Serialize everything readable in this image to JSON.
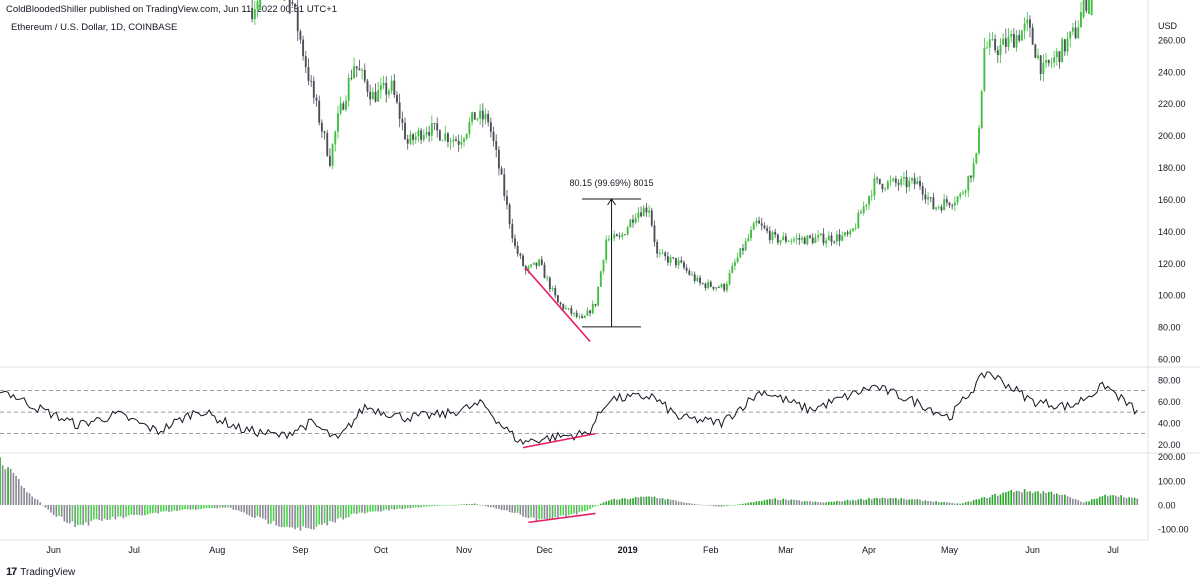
{
  "header": {
    "published_by": "ColdBloodedShiller published on TradingView.com, Jun 11, 2022 00:51 UTC+1"
  },
  "symbol_line": "Ethereum / U.S. Dollar, 1D, COINBASE",
  "footer": {
    "brand": "TradingView",
    "logo_glyph": "17"
  },
  "colors": {
    "up": "#3fbf3f",
    "down": "#4d4d5a",
    "annotation": "#e91e63",
    "rsi_line": "#131722",
    "hist_up": "#4cd24c",
    "hist_down": "#8a8a96",
    "hist_strong": "#26a626"
  },
  "chart_data": [
    {
      "type": "candlestick",
      "title": "Ethereum / U.S. Dollar, 1D, COINBASE",
      "y_unit": "USD",
      "ylim": [
        55,
        285
      ],
      "y_ticks": [
        "260.00",
        "240.00",
        "220.00",
        "200.00",
        "180.00",
        "160.00",
        "140.00",
        "120.00",
        "100.00",
        "80.00",
        "60.00"
      ],
      "x_ticks": [
        "Jun",
        "Jul",
        "Aug",
        "Sep",
        "Oct",
        "Nov",
        "Dec",
        "2019",
        "Feb",
        "Mar",
        "Apr",
        "May",
        "Jun",
        "Jul"
      ],
      "x_range": [
        "2018-05-12",
        "2019-07-14"
      ],
      "close_path": [
        [
          "2018-08-14",
          280
        ],
        [
          "2018-08-20",
          300
        ],
        [
          "2018-08-28",
          290
        ],
        [
          "2018-09-05",
          230
        ],
        [
          "2018-09-12",
          185
        ],
        [
          "2018-09-15",
          210
        ],
        [
          "2018-09-21",
          245
        ],
        [
          "2018-09-28",
          225
        ],
        [
          "2018-10-05",
          230
        ],
        [
          "2018-10-11",
          195
        ],
        [
          "2018-10-18",
          205
        ],
        [
          "2018-10-30",
          197
        ],
        [
          "2018-11-05",
          212
        ],
        [
          "2018-11-10",
          210
        ],
        [
          "2018-11-14",
          180
        ],
        [
          "2018-11-20",
          130
        ],
        [
          "2018-11-24",
          115
        ],
        [
          "2018-11-29",
          120
        ],
        [
          "2018-12-06",
          95
        ],
        [
          "2018-12-15",
          84
        ],
        [
          "2018-12-20",
          95
        ],
        [
          "2018-12-24",
          135
        ],
        [
          "2018-12-29",
          135
        ],
        [
          "2019-01-04",
          152
        ],
        [
          "2019-01-09",
          155
        ],
        [
          "2019-01-12",
          125
        ],
        [
          "2019-01-20",
          120
        ],
        [
          "2019-01-28",
          107
        ],
        [
          "2019-02-06",
          105
        ],
        [
          "2019-02-10",
          120
        ],
        [
          "2019-02-18",
          145
        ],
        [
          "2019-02-25",
          135
        ],
        [
          "2019-03-10",
          135
        ],
        [
          "2019-03-25",
          137
        ],
        [
          "2019-04-03",
          170
        ],
        [
          "2019-04-12",
          170
        ],
        [
          "2019-04-20",
          170
        ],
        [
          "2019-04-25",
          155
        ],
        [
          "2019-05-05",
          162
        ],
        [
          "2019-05-11",
          185
        ],
        [
          "2019-05-14",
          255
        ],
        [
          "2019-05-20",
          255
        ],
        [
          "2019-05-30",
          268
        ],
        [
          "2019-06-05",
          240
        ],
        [
          "2019-06-10",
          250
        ],
        [
          "2019-06-17",
          265
        ],
        [
          "2019-06-24",
          305
        ]
      ],
      "annotations": {
        "measure": {
          "label": "80.15 (99.69%) 8015",
          "from_date": "2018-12-15",
          "to_date": "2019-01-06",
          "low": 80.15,
          "high": 160.3
        },
        "trendline": {
          "from": [
            "2018-11-24",
            117
          ],
          "to": [
            "2018-12-18",
            71
          ]
        }
      }
    },
    {
      "type": "line",
      "name": "RSI",
      "ylim": [
        12,
        92
      ],
      "y_ticks": [
        "80.00",
        "60.00",
        "40.00",
        "20.00"
      ],
      "levels": [
        70,
        50,
        30
      ],
      "path": [
        [
          "2018-05-12",
          72
        ],
        [
          "2018-05-25",
          55
        ],
        [
          "2018-06-10",
          38
        ],
        [
          "2018-06-25",
          48
        ],
        [
          "2018-07-10",
          32
        ],
        [
          "2018-07-25",
          52
        ],
        [
          "2018-08-10",
          34
        ],
        [
          "2018-08-25",
          28
        ],
        [
          "2018-09-05",
          40
        ],
        [
          "2018-09-15",
          24
        ],
        [
          "2018-09-25",
          55
        ],
        [
          "2018-10-10",
          45
        ],
        [
          "2018-10-25",
          48
        ],
        [
          "2018-11-08",
          58
        ],
        [
          "2018-11-15",
          38
        ],
        [
          "2018-11-22",
          22
        ],
        [
          "2018-12-05",
          27
        ],
        [
          "2018-12-17",
          30
        ],
        [
          "2018-12-25",
          62
        ],
        [
          "2019-01-10",
          65
        ],
        [
          "2019-01-20",
          45
        ],
        [
          "2019-02-05",
          40
        ],
        [
          "2019-02-20",
          70
        ],
        [
          "2019-03-10",
          52
        ],
        [
          "2019-04-03",
          74
        ],
        [
          "2019-04-20",
          58
        ],
        [
          "2019-05-01",
          45
        ],
        [
          "2019-05-15",
          88
        ],
        [
          "2019-06-01",
          60
        ],
        [
          "2019-06-15",
          55
        ],
        [
          "2019-06-28",
          75
        ],
        [
          "2019-07-10",
          50
        ]
      ],
      "divergence": {
        "from": [
          "2018-11-23",
          17
        ],
        "to": [
          "2018-12-20",
          30
        ]
      }
    },
    {
      "type": "bar",
      "name": "Histogram",
      "ylim": [
        -145,
        215
      ],
      "y_ticks": [
        "200.00",
        "100.00",
        "0.00",
        "-100.00"
      ],
      "path": [
        [
          "2018-05-12",
          180
        ],
        [
          "2018-05-22",
          60
        ],
        [
          "2018-06-01",
          -40
        ],
        [
          "2018-06-10",
          -85
        ],
        [
          "2018-06-20",
          -60
        ],
        [
          "2018-07-05",
          -40
        ],
        [
          "2018-07-20",
          -20
        ],
        [
          "2018-08-05",
          -10
        ],
        [
          "2018-08-20",
          -70
        ],
        [
          "2018-09-05",
          -105
        ],
        [
          "2018-09-20",
          -40
        ],
        [
          "2018-10-05",
          -20
        ],
        [
          "2018-10-20",
          -5
        ],
        [
          "2018-11-05",
          5
        ],
        [
          "2018-11-15",
          -20
        ],
        [
          "2018-11-30",
          -65
        ],
        [
          "2018-12-15",
          -30
        ],
        [
          "2018-12-25",
          20
        ],
        [
          "2019-01-10",
          35
        ],
        [
          "2019-01-25",
          5
        ],
        [
          "2019-02-05",
          -8
        ],
        [
          "2019-02-25",
          25
        ],
        [
          "2019-03-15",
          10
        ],
        [
          "2019-04-05",
          30
        ],
        [
          "2019-04-20",
          20
        ],
        [
          "2019-05-05",
          5
        ],
        [
          "2019-05-25",
          60
        ],
        [
          "2019-06-10",
          50
        ],
        [
          "2019-06-20",
          10
        ],
        [
          "2019-06-30",
          45
        ],
        [
          "2019-07-10",
          25
        ]
      ],
      "divergence": {
        "from": [
          "2018-11-25",
          -72
        ],
        "to": [
          "2018-12-20",
          -35
        ]
      }
    }
  ]
}
